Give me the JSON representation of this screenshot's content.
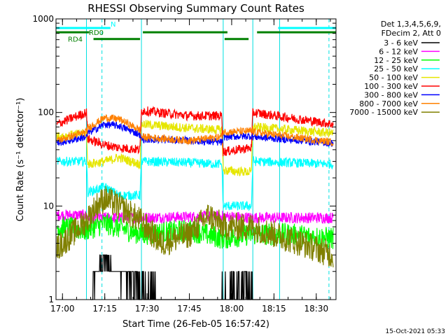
{
  "chart_data": {
    "type": "line",
    "title": "RHESSI Observing Summary Count Rates",
    "xlabel": "Start Time (26-Feb-05 16:57:42)",
    "ylabel": "Count Rate (s⁻¹ detector⁻¹)",
    "y_scale": "log",
    "ylim": [
      1,
      1000
    ],
    "xlim": [
      "16:57:42",
      "18:37:00"
    ],
    "x_ticks": [
      "17:00",
      "17:15",
      "17:30",
      "17:45",
      "18:00",
      "18:15",
      "18:30"
    ],
    "y_ticks": [
      "1",
      "10",
      "100",
      "1000"
    ],
    "legend_header": [
      "Det 1,3,4,5,6,9,",
      "FDecim 2, Att 0"
    ],
    "legend_position": "right",
    "timestamp": "15-Oct-2021 05:33",
    "flags": [
      {
        "name": "N",
        "color": "#00ffff",
        "segments": [
          [
            "16:57:42",
            "17:17:00"
          ],
          [
            "18:16:30",
            "18:37:00"
          ]
        ]
      },
      {
        "name": "RD0",
        "color": "#008000",
        "segments": [
          [
            "16:57:42",
            "17:09:30"
          ],
          [
            "17:28:30",
            "17:58:30"
          ],
          [
            "18:09:00",
            "18:37:00"
          ]
        ]
      },
      {
        "name": "RD4",
        "color": "#008000",
        "segments": [
          [
            "17:11:00",
            "17:27:30"
          ],
          [
            "17:57:30",
            "18:06:00"
          ]
        ]
      }
    ],
    "night_boundaries": [
      "17:08:30",
      "17:28:00",
      "17:57:00",
      "18:07:30",
      "18:17:00"
    ],
    "dashed_boundaries": [
      "17:14:00",
      "18:34:30"
    ],
    "series": [
      {
        "name": "3 - 6 keV",
        "color": "#000000",
        "points": [
          [
            "17:10:00",
            1
          ],
          [
            "17:12:00",
            2
          ],
          [
            "17:15:00",
            2.8
          ],
          [
            "17:18:00",
            2
          ],
          [
            "17:22:00",
            1.8
          ],
          [
            "17:26:00",
            1.5
          ],
          [
            "17:45:00",
            1
          ],
          [
            "18:05:00",
            1.5
          ],
          [
            "18:10:00",
            1
          ]
        ]
      },
      {
        "name": "6 - 12 keV",
        "color": "#ff00ff",
        "points": [
          [
            "16:58:00",
            8
          ],
          [
            "17:08:00",
            8
          ],
          [
            "17:09:00",
            7.5
          ],
          [
            "17:28:00",
            7.5
          ],
          [
            "17:57:00",
            7.8
          ],
          [
            "18:07:00",
            7.5
          ],
          [
            "18:36:00",
            7.5
          ]
        ]
      },
      {
        "name": "12 - 25 keV",
        "color": "#00ff00",
        "points": [
          [
            "16:58:00",
            6
          ],
          [
            "17:08:00",
            5.5
          ],
          [
            "17:15:00",
            6.5
          ],
          [
            "17:28:00",
            5
          ],
          [
            "17:45:00",
            5.5
          ],
          [
            "17:57:00",
            4.5
          ],
          [
            "18:07:00",
            5
          ],
          [
            "18:20:00",
            5
          ],
          [
            "18:36:00",
            4.5
          ]
        ]
      },
      {
        "name": "25 - 50 keV",
        "color": "#00ffff",
        "points": [
          [
            "16:58:00",
            30
          ],
          [
            "17:08:30",
            30
          ],
          [
            "17:09:00",
            14
          ],
          [
            "17:15:00",
            16
          ],
          [
            "17:20:00",
            13
          ],
          [
            "17:27:30",
            13
          ],
          [
            "17:28:00",
            30
          ],
          [
            "17:45:00",
            29
          ],
          [
            "17:56:30",
            28
          ],
          [
            "17:57:00",
            10
          ],
          [
            "18:07:00",
            10
          ],
          [
            "18:07:30",
            30
          ],
          [
            "18:36:00",
            28
          ]
        ]
      },
      {
        "name": "50 - 100 keV",
        "color": "#e6e600",
        "points": [
          [
            "16:58:00",
            55
          ],
          [
            "17:08:30",
            60
          ],
          [
            "17:09:00",
            28
          ],
          [
            "17:15:00",
            30
          ],
          [
            "17:20:00",
            33
          ],
          [
            "17:27:30",
            28
          ],
          [
            "17:28:00",
            75
          ],
          [
            "17:45:00",
            68
          ],
          [
            "17:56:30",
            65
          ],
          [
            "17:57:00",
            24
          ],
          [
            "18:07:00",
            23
          ],
          [
            "18:07:30",
            70
          ],
          [
            "18:36:00",
            60
          ]
        ]
      },
      {
        "name": "100 - 300 keV",
        "color": "#ff0000",
        "points": [
          [
            "16:58:00",
            75
          ],
          [
            "17:08:30",
            100
          ],
          [
            "17:09:00",
            52
          ],
          [
            "17:15:00",
            45
          ],
          [
            "17:20:00",
            42
          ],
          [
            "17:27:30",
            40
          ],
          [
            "17:28:00",
            105
          ],
          [
            "17:45:00",
            92
          ],
          [
            "17:56:30",
            92
          ],
          [
            "17:57:00",
            38
          ],
          [
            "18:07:00",
            42
          ],
          [
            "18:07:30",
            100
          ],
          [
            "18:36:00",
            75
          ]
        ]
      },
      {
        "name": "300 - 800 keV",
        "color": "#0000ff",
        "points": [
          [
            "16:58:00",
            47
          ],
          [
            "17:08:30",
            55
          ],
          [
            "17:09:00",
            60
          ],
          [
            "17:15:00",
            75
          ],
          [
            "17:20:00",
            72
          ],
          [
            "17:27:30",
            58
          ],
          [
            "17:28:00",
            52
          ],
          [
            "17:45:00",
            50
          ],
          [
            "17:56:30",
            48
          ],
          [
            "17:57:00",
            55
          ],
          [
            "18:07:00",
            56
          ],
          [
            "18:07:30",
            55
          ],
          [
            "18:36:00",
            47
          ]
        ]
      },
      {
        "name": "800 - 7000 keV",
        "color": "#ff8000",
        "points": [
          [
            "16:58:00",
            50
          ],
          [
            "17:08:30",
            62
          ],
          [
            "17:09:00",
            68
          ],
          [
            "17:15:00",
            88
          ],
          [
            "17:20:00",
            85
          ],
          [
            "17:27:30",
            65
          ],
          [
            "17:28:00",
            55
          ],
          [
            "17:45:00",
            50
          ],
          [
            "17:56:30",
            55
          ],
          [
            "17:57:00",
            62
          ],
          [
            "18:07:00",
            63
          ],
          [
            "18:07:30",
            62
          ],
          [
            "18:36:00",
            48
          ]
        ]
      },
      {
        "name": "7000 - 15000 keV",
        "color": "#808000",
        "points": [
          [
            "16:58:00",
            3.5
          ],
          [
            "17:08:30",
            7
          ],
          [
            "17:12:00",
            10
          ],
          [
            "17:15:00",
            12
          ],
          [
            "17:20:00",
            10
          ],
          [
            "17:27:30",
            7
          ],
          [
            "17:35:00",
            4
          ],
          [
            "17:45:00",
            5
          ],
          [
            "17:52:00",
            8
          ],
          [
            "17:57:00",
            6
          ],
          [
            "18:07:00",
            6
          ],
          [
            "18:15:00",
            5
          ],
          [
            "18:25:00",
            4
          ],
          [
            "18:36:00",
            3
          ]
        ]
      }
    ]
  }
}
